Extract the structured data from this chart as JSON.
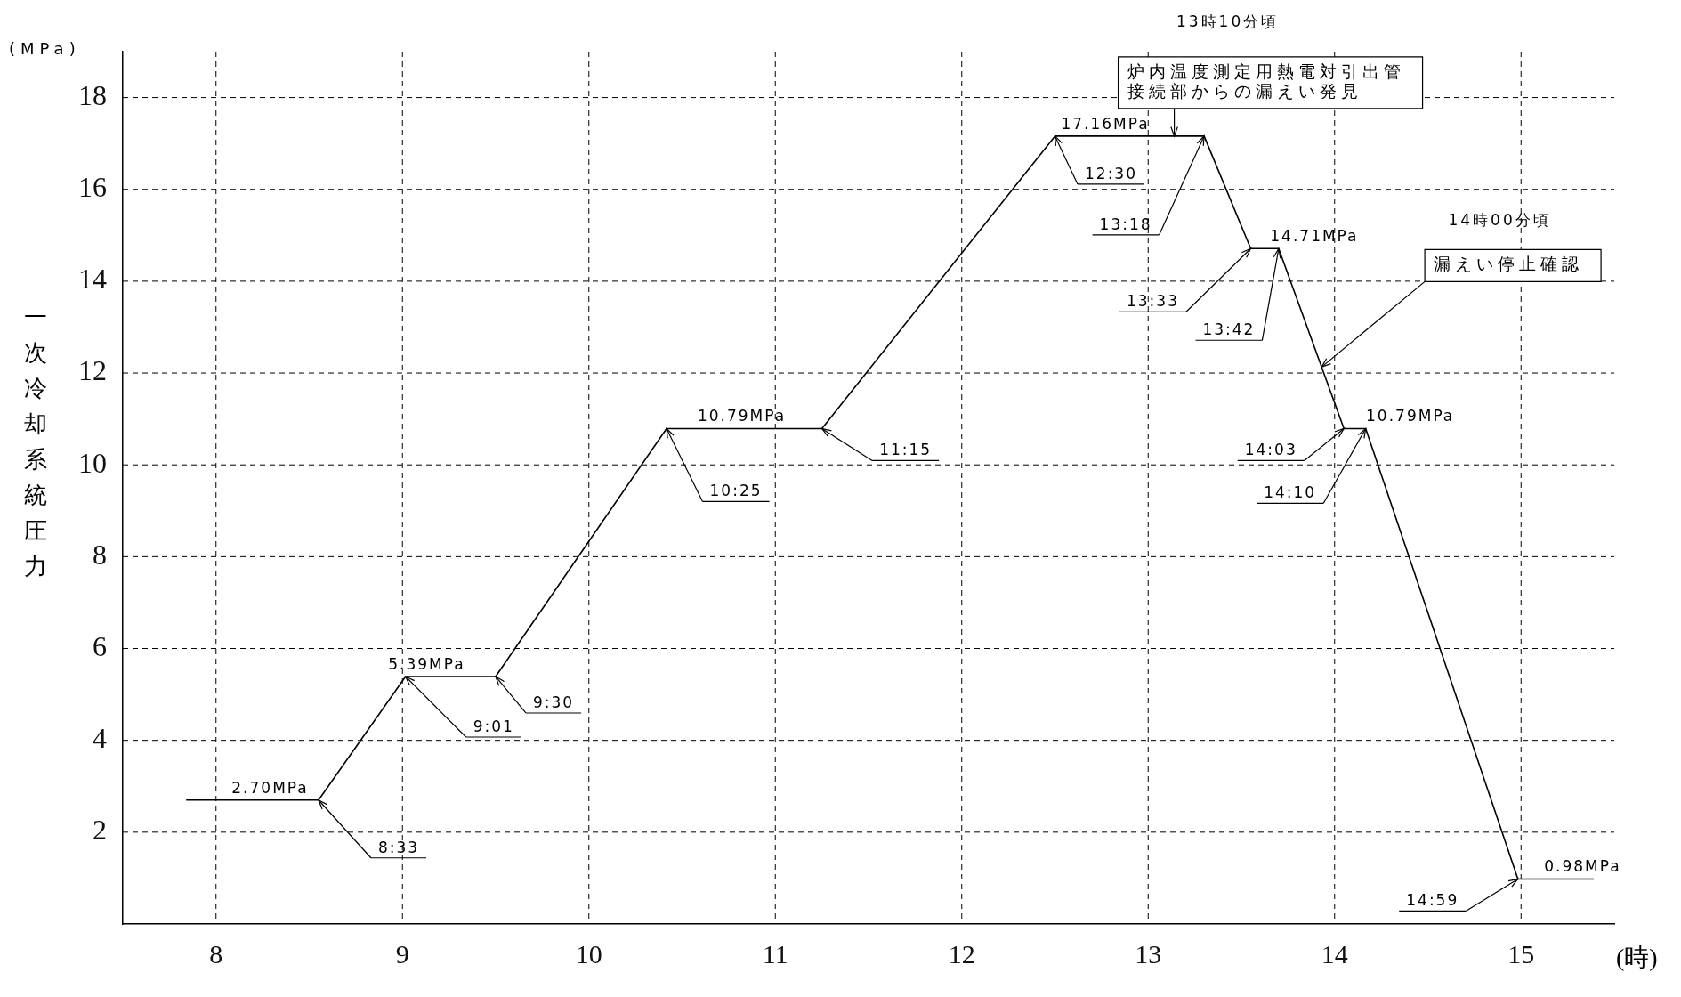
{
  "chart_data": {
    "type": "line",
    "ylabel": "一次冷却系統圧力",
    "xlabel": "(時)",
    "x": [
      7.84,
      8.55,
      9.0167,
      9.5,
      10.4167,
      11.25,
      12.5,
      13.3,
      13.55,
      13.7,
      14.05,
      14.1667,
      14.9833,
      15.39
    ],
    "series": [
      {
        "color": "#000000",
        "values": [
          2.7,
          2.7,
          5.39,
          5.39,
          10.79,
          10.79,
          17.16,
          17.16,
          14.71,
          14.71,
          10.79,
          10.79,
          0.98,
          0.98
        ]
      }
    ],
    "xlim": [
      7.5,
      15.5
    ],
    "ylim": [
      0,
      19
    ],
    "xticks": [
      8,
      9,
      10,
      11,
      12,
      13,
      14,
      15
    ],
    "yticks": [
      2,
      4,
      6,
      8,
      10,
      12,
      14,
      16,
      18
    ],
    "grid": true,
    "legend": false,
    "marker": "none",
    "line_style": "solid",
    "annotations": [
      "(MPa)",
      {
        "text": "8:33",
        "x": 8.55,
        "y": 2.7
      },
      {
        "text": "9:01",
        "x": 9.0167,
        "y": 5.39
      },
      {
        "text": "9:30",
        "x": 9.5,
        "y": 5.39
      },
      {
        "text": "10:25",
        "x": 10.4167,
        "y": 10.79
      },
      {
        "text": "11:15",
        "x": 11.25,
        "y": 10.79
      },
      {
        "text": "12:30",
        "x": 12.5,
        "y": 17.16
      },
      {
        "text": "13:18",
        "x": 13.3,
        "y": 17.16
      },
      {
        "text": "13:33",
        "x": 13.55,
        "y": 14.71
      },
      {
        "text": "13:42",
        "x": 13.7,
        "y": 14.71
      },
      {
        "text": "14:03",
        "x": 14.05,
        "y": 10.79
      },
      {
        "text": "14:10",
        "x": 14.1667,
        "y": 10.79
      },
      {
        "text": "14:59",
        "x": 14.9833,
        "y": 0.98
      },
      {
        "text": "2.70MPa",
        "x": 8.29,
        "y": 2.7
      },
      {
        "text": "5.39MPa",
        "x": 9.13,
        "y": 5.39
      },
      {
        "text": "10.79MPa",
        "x": 10.82,
        "y": 10.79
      },
      {
        "text": "17.16MPa",
        "x": 12.77,
        "y": 17.16
      },
      {
        "text": "14.71MPa",
        "x": 13.7,
        "y": 14.71
      },
      {
        "text": "10.79MPa",
        "x": 14.1667,
        "y": 10.79
      },
      {
        "text": "0.98MPa",
        "x": 15.33,
        "y": 0.98
      },
      "13時10分頃",
      {
        "text": "炉内温度測定用熱電対引出管接続部からの漏えい発見",
        "x": 13.14,
        "y": 17.16
      },
      "14時00分頃",
      {
        "text": "漏えい停止確認",
        "x": 13.93,
        "y": 12.13
      }
    ]
  }
}
